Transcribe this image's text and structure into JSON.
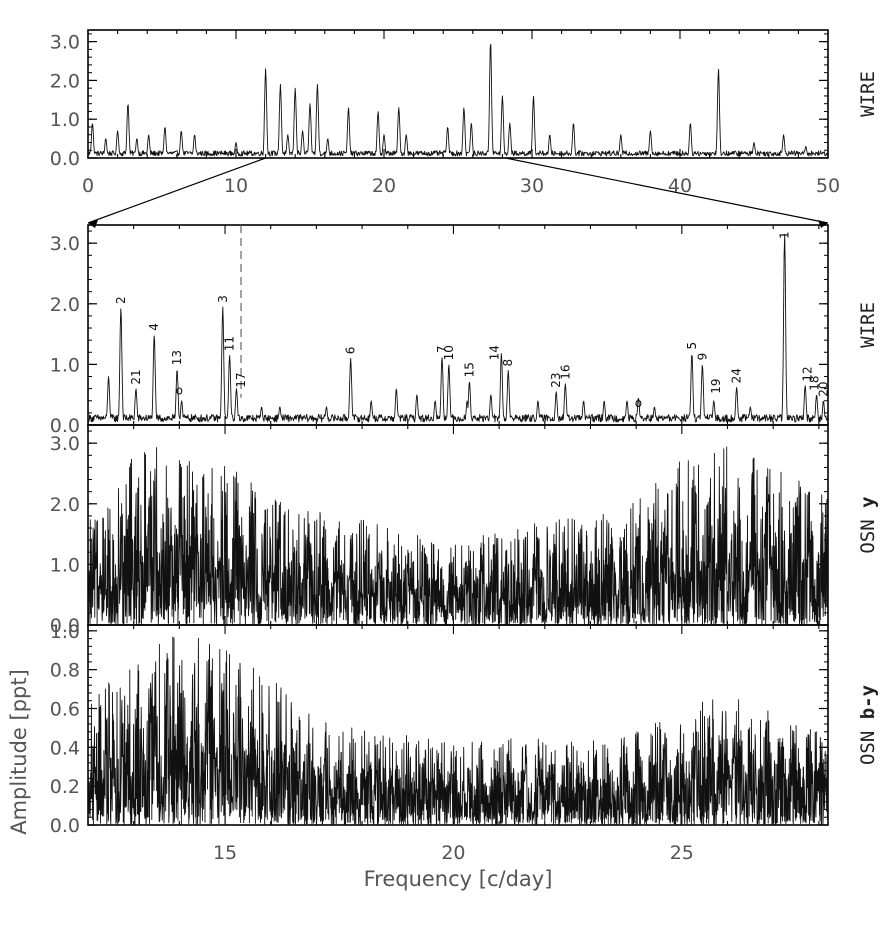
{
  "chart_data": [
    {
      "id": "p1",
      "type": "line",
      "series": [
        {
          "name": "WIRE"
        }
      ],
      "xlim": [
        0,
        50
      ],
      "ylim": [
        0,
        3.3
      ],
      "xticks": [
        0,
        10,
        20,
        30,
        40,
        50
      ],
      "xtick_labels": [
        "0",
        "10",
        "20",
        "30",
        "40",
        "50"
      ],
      "yticks": [
        0,
        1,
        2,
        3
      ],
      "ytick_labels": [
        "0.0",
        "1.0",
        "2.0",
        "3.0"
      ],
      "noise": 0.15,
      "peaks": [
        [
          0.3,
          0.9
        ],
        [
          1.2,
          0.5
        ],
        [
          2.0,
          0.7
        ],
        [
          2.7,
          1.4
        ],
        [
          3.3,
          0.5
        ],
        [
          4.1,
          0.6
        ],
        [
          5.2,
          0.8
        ],
        [
          6.3,
          0.7
        ],
        [
          7.2,
          0.6
        ],
        [
          10.0,
          0.4
        ],
        [
          12.0,
          2.3
        ],
        [
          13.0,
          1.9
        ],
        [
          13.5,
          0.6
        ],
        [
          14.0,
          1.8
        ],
        [
          14.5,
          0.7
        ],
        [
          15.0,
          1.4
        ],
        [
          15.5,
          1.9
        ],
        [
          16.2,
          0.5
        ],
        [
          17.6,
          1.3
        ],
        [
          19.6,
          1.2
        ],
        [
          20.0,
          0.6
        ],
        [
          21.0,
          1.3
        ],
        [
          21.5,
          0.6
        ],
        [
          24.3,
          0.8
        ],
        [
          25.4,
          1.3
        ],
        [
          25.9,
          0.9
        ],
        [
          27.2,
          3.0
        ],
        [
          28.0,
          1.6
        ],
        [
          28.5,
          0.9
        ],
        [
          30.1,
          1.6
        ],
        [
          31.2,
          0.6
        ],
        [
          32.8,
          0.9
        ],
        [
          36.0,
          0.6
        ],
        [
          38.0,
          0.7
        ],
        [
          40.7,
          0.9
        ],
        [
          42.6,
          2.3
        ],
        [
          45.0,
          0.4
        ],
        [
          47.0,
          0.6
        ],
        [
          48.5,
          0.3
        ]
      ]
    },
    {
      "id": "p2",
      "type": "line",
      "series": [
        {
          "name": "WIRE"
        }
      ],
      "xlim": [
        12.0,
        28.2
      ],
      "ylim": [
        0,
        3.3
      ],
      "yticks": [
        0,
        1,
        2,
        3
      ],
      "ytick_labels": [
        "0.0",
        "1.0",
        "2.0",
        "3.0"
      ],
      "noise": 0.14,
      "peaks": [
        [
          12.45,
          0.8
        ],
        [
          12.72,
          1.93
        ],
        [
          13.05,
          0.6
        ],
        [
          13.45,
          1.49
        ],
        [
          13.95,
          0.92
        ],
        [
          14.05,
          0.4
        ],
        [
          14.95,
          1.95
        ],
        [
          15.1,
          1.15
        ],
        [
          15.25,
          0.6
        ],
        [
          15.8,
          0.3
        ],
        [
          16.2,
          0.3
        ],
        [
          17.22,
          0.3
        ],
        [
          17.75,
          1.1
        ],
        [
          18.2,
          0.4
        ],
        [
          18.75,
          0.6
        ],
        [
          19.2,
          0.5
        ],
        [
          19.6,
          0.4
        ],
        [
          19.75,
          1.12
        ],
        [
          19.9,
          1.0
        ],
        [
          20.3,
          0.4
        ],
        [
          20.35,
          0.72
        ],
        [
          20.82,
          0.5
        ],
        [
          21.05,
          1.18
        ],
        [
          21.2,
          0.9
        ],
        [
          21.85,
          0.4
        ],
        [
          22.25,
          0.55
        ],
        [
          22.45,
          0.68
        ],
        [
          22.85,
          0.4
        ],
        [
          23.3,
          0.4
        ],
        [
          23.8,
          0.4
        ],
        [
          24.05,
          0.45
        ],
        [
          24.4,
          0.3
        ],
        [
          25.22,
          1.18
        ],
        [
          25.45,
          1.0
        ],
        [
          25.7,
          0.4
        ],
        [
          26.2,
          0.62
        ],
        [
          26.5,
          0.3
        ],
        [
          27.25,
          3.15
        ],
        [
          27.7,
          0.65
        ],
        [
          27.95,
          0.5
        ],
        [
          28.1,
          0.4
        ]
      ],
      "dashed_line_x": 15.35,
      "annotations": [
        {
          "text": "2",
          "x": 12.72,
          "y": 1.93
        },
        {
          "text": "21",
          "x": 13.05,
          "y": 0.6
        },
        {
          "text": "4",
          "x": 13.45,
          "y": 1.49
        },
        {
          "text": "13",
          "x": 13.95,
          "y": 0.92
        },
        {
          "text": "3",
          "x": 14.95,
          "y": 1.95
        },
        {
          "text": "11",
          "x": 15.1,
          "y": 1.15
        },
        {
          "text": "17",
          "x": 15.35,
          "y": 0.55
        },
        {
          "text": "6",
          "x": 17.75,
          "y": 1.1
        },
        {
          "text": "7",
          "x": 19.75,
          "y": 1.12
        },
        {
          "text": "10",
          "x": 19.9,
          "y": 1.0
        },
        {
          "text": "15",
          "x": 20.35,
          "y": 0.72
        },
        {
          "text": "14",
          "x": 20.9,
          "y": 1.0
        },
        {
          "text": "8",
          "x": 21.2,
          "y": 0.9
        },
        {
          "text": "23",
          "x": 22.25,
          "y": 0.55
        },
        {
          "text": "16",
          "x": 22.45,
          "y": 0.68
        },
        {
          "text": "5",
          "x": 25.22,
          "y": 1.18
        },
        {
          "text": "9",
          "x": 25.45,
          "y": 1.0
        },
        {
          "text": "19",
          "x": 25.75,
          "y": 0.45
        },
        {
          "text": "24",
          "x": 26.2,
          "y": 0.62
        },
        {
          "text": "1",
          "x": 27.25,
          "y": 3.15
        },
        {
          "text": "12",
          "x": 27.75,
          "y": 0.65
        },
        {
          "text": "18",
          "x": 27.9,
          "y": 0.5
        },
        {
          "text": "20",
          "x": 28.1,
          "y": 0.4
        }
      ],
      "markers": [
        {
          "text": "o",
          "x": 14.0,
          "y": 0.5
        },
        {
          "text": "o",
          "x": 24.05,
          "y": 0.3
        }
      ]
    },
    {
      "id": "p3",
      "type": "line",
      "series": [
        {
          "name": "OSN y"
        }
      ],
      "xlim": [
        12.0,
        28.2
      ],
      "ylim": [
        0,
        3.3
      ],
      "yticks": [
        0,
        1,
        2,
        3
      ],
      "ytick_labels": [
        "0.0",
        "1.0",
        "2.0",
        "3.0"
      ],
      "envelope": [
        [
          12.0,
          1.6
        ],
        [
          13.0,
          2.6
        ],
        [
          14.0,
          2.8
        ],
        [
          15.0,
          2.4
        ],
        [
          16.0,
          2.0
        ],
        [
          17.0,
          1.7
        ],
        [
          18.0,
          1.6
        ],
        [
          19.0,
          1.4
        ],
        [
          20.0,
          1.3
        ],
        [
          21.0,
          1.4
        ],
        [
          22.0,
          1.6
        ],
        [
          23.0,
          1.6
        ],
        [
          24.0,
          1.9
        ],
        [
          25.0,
          2.5
        ],
        [
          26.0,
          2.7
        ],
        [
          27.0,
          2.4
        ],
        [
          28.2,
          1.9
        ]
      ]
    },
    {
      "id": "p4",
      "type": "line",
      "series": [
        {
          "name": "OSN b-y"
        }
      ],
      "xlim": [
        12.0,
        28.2
      ],
      "ylim": [
        0,
        1.03
      ],
      "xticks": [
        15,
        20,
        25
      ],
      "xtick_labels": [
        "15",
        "20",
        "25"
      ],
      "yticks": [
        0,
        0.2,
        0.4,
        0.6,
        0.8,
        1.0
      ],
      "ytick_labels": [
        "0.0",
        "0.2",
        "0.4",
        "0.6",
        "0.8",
        "1.0"
      ],
      "envelope": [
        [
          12.0,
          0.55
        ],
        [
          13.0,
          0.82
        ],
        [
          14.0,
          0.9
        ],
        [
          15.0,
          0.85
        ],
        [
          16.0,
          0.7
        ],
        [
          17.0,
          0.5
        ],
        [
          18.0,
          0.45
        ],
        [
          19.0,
          0.42
        ],
        [
          20.0,
          0.38
        ],
        [
          21.0,
          0.4
        ],
        [
          22.0,
          0.42
        ],
        [
          23.0,
          0.4
        ],
        [
          24.0,
          0.45
        ],
        [
          25.0,
          0.55
        ],
        [
          26.0,
          0.62
        ],
        [
          27.0,
          0.55
        ],
        [
          28.2,
          0.45
        ]
      ]
    }
  ],
  "labels": {
    "p1_side": "WIRE",
    "p2_side": "WIRE",
    "p3_side_a": "OSN ",
    "p3_side_b": "y",
    "p4_side_a": "OSN ",
    "p4_side_b": "b-y",
    "ylabel": "Amplitude [ppt]",
    "xlabel": "Frequency [c/day]"
  }
}
